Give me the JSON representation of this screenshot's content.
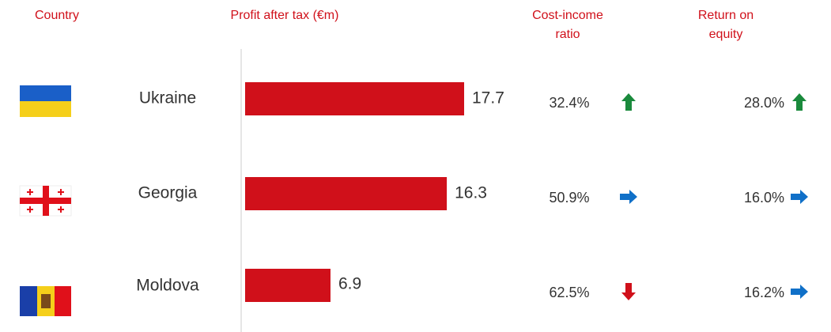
{
  "headers": {
    "country": "Country",
    "profit": "Profit after tax (€m)",
    "cost_income": [
      "Cost-income",
      "ratio"
    ],
    "roe": [
      "Return on",
      "equity"
    ]
  },
  "bar_color": "#d0101a",
  "rows": [
    {
      "country": "Ukraine",
      "profit": 17.7,
      "cost_income": "32.4%",
      "cost_income_trend": "up",
      "roe": "28.0%",
      "roe_trend": "up"
    },
    {
      "country": "Georgia",
      "profit": 16.3,
      "cost_income": "50.9%",
      "cost_income_trend": "right",
      "roe": "16.0%",
      "roe_trend": "right"
    },
    {
      "country": "Moldova",
      "profit": 6.9,
      "cost_income": "62.5%",
      "cost_income_trend": "down",
      "roe": "16.2%",
      "roe_trend": "right"
    }
  ]
}
